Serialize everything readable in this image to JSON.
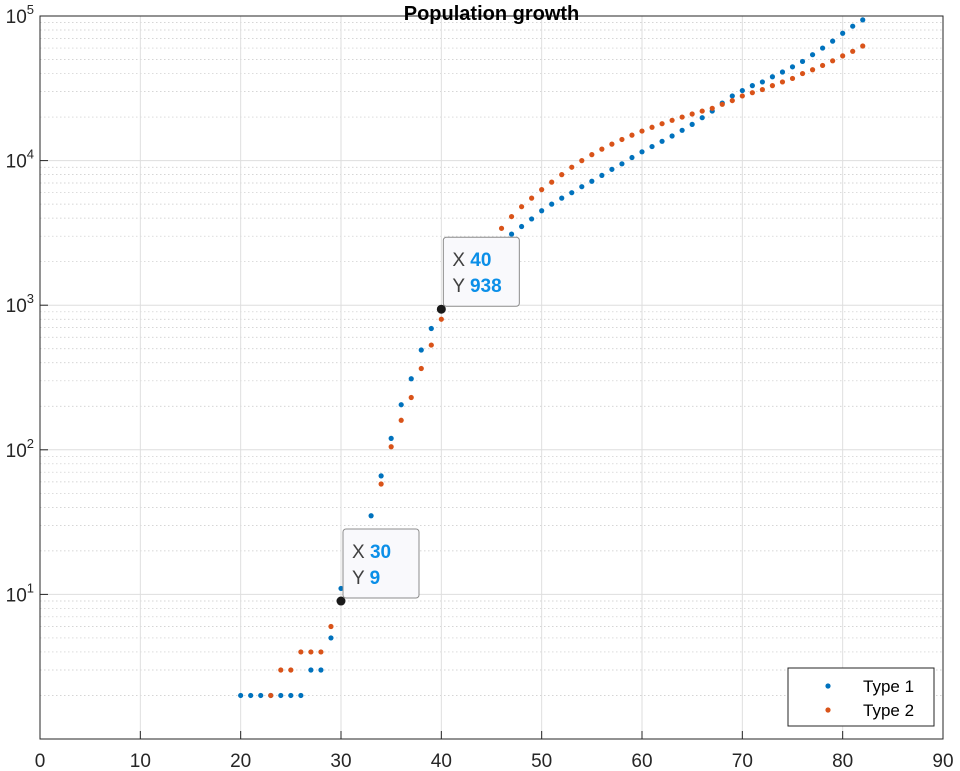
{
  "chart_data": {
    "type": "scatter",
    "title": "Population growth",
    "xlabel": "",
    "ylabel": "",
    "xlim": [
      0,
      90
    ],
    "ylim": [
      1,
      100000
    ],
    "yscale": "log",
    "grid": true,
    "minor_grid": true,
    "x_ticks": [
      "0",
      "10",
      "20",
      "30",
      "40",
      "50",
      "60",
      "70",
      "80",
      "90"
    ],
    "y_ticks": [
      {
        "base": "10",
        "exp": "1"
      },
      {
        "base": "10",
        "exp": "2"
      },
      {
        "base": "10",
        "exp": "3"
      },
      {
        "base": "10",
        "exp": "4"
      },
      {
        "base": "10",
        "exp": "5"
      }
    ],
    "legend_position": "bottom-right",
    "series": [
      {
        "name": "Type 1",
        "color": "#0072BD",
        "x": [
          20,
          21,
          22,
          23,
          24,
          25,
          26,
          27,
          28,
          29,
          30,
          31,
          32,
          33,
          34,
          35,
          36,
          37,
          38,
          39,
          40,
          41,
          42,
          43,
          44,
          45,
          46,
          47,
          48,
          49,
          50,
          51,
          52,
          53,
          54,
          55,
          56,
          57,
          58,
          59,
          60,
          61,
          62,
          63,
          64,
          65,
          66,
          67,
          68,
          69,
          70,
          71,
          72,
          73,
          74,
          75,
          76,
          77,
          78,
          79,
          80,
          81,
          82
        ],
        "y": [
          2,
          2,
          2,
          2,
          2,
          2,
          2,
          3,
          3,
          5,
          11,
          15,
          22,
          35,
          66,
          120,
          205,
          310,
          490,
          690,
          938,
          1200,
          1450,
          1750,
          2100,
          2450,
          2800,
          3100,
          3500,
          3950,
          4500,
          5000,
          5500,
          6000,
          6600,
          7200,
          7900,
          8700,
          9500,
          10500,
          11500,
          12500,
          13600,
          14800,
          16200,
          17800,
          19800,
          22000,
          25000,
          28000,
          30500,
          33000,
          35000,
          38000,
          41000,
          44500,
          48500,
          54000,
          60000,
          67000,
          76000,
          85000,
          94000
        ]
      },
      {
        "name": "Type 2",
        "color": "#D95319",
        "x": [
          23,
          24,
          25,
          26,
          27,
          28,
          29,
          30,
          31,
          32,
          33,
          34,
          35,
          36,
          37,
          38,
          39,
          40,
          41,
          42,
          43,
          44,
          45,
          46,
          47,
          48,
          49,
          50,
          51,
          52,
          53,
          54,
          55,
          56,
          57,
          58,
          59,
          60,
          61,
          62,
          63,
          64,
          65,
          66,
          67,
          68,
          69,
          70,
          71,
          72,
          73,
          74,
          75,
          76,
          77,
          78,
          79,
          80,
          81,
          82
        ],
        "y": [
          2,
          3,
          3,
          4,
          4,
          4,
          6,
          9,
          13,
          18,
          26,
          58,
          105,
          160,
          230,
          365,
          530,
          800,
          1150,
          1600,
          2050,
          2500,
          2800,
          3400,
          4100,
          4800,
          5500,
          6300,
          7100,
          8000,
          9000,
          10000,
          11000,
          12000,
          13000,
          14000,
          15000,
          16000,
          17000,
          18000,
          19000,
          20000,
          21000,
          22000,
          23000,
          24500,
          26000,
          28000,
          29500,
          31000,
          33000,
          35000,
          37000,
          40000,
          42500,
          45500,
          49000,
          53000,
          57000,
          62000
        ]
      }
    ],
    "datatips": [
      {
        "x_key": "X",
        "y_key": "Y",
        "x": "40",
        "y": "938",
        "point_x": 40,
        "point_y": 938
      },
      {
        "x_key": "X",
        "y_key": "Y",
        "x": "30",
        "y": "9",
        "point_x": 30,
        "point_y": 9
      }
    ]
  }
}
